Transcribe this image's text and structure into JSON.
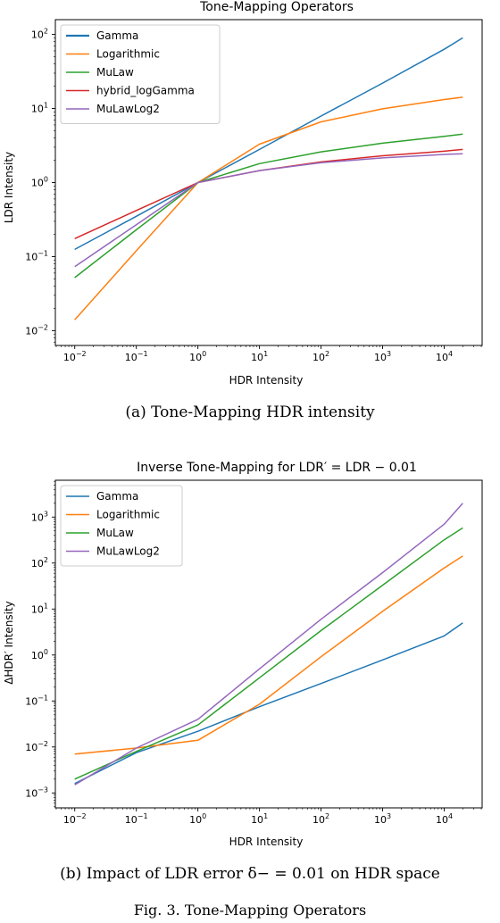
{
  "figure_caption": "Fig. 3. Tone-Mapping Operators",
  "subcaptions": [
    "(a) Tone-Mapping HDR intensity",
    "(b) Impact of LDR error δ− = 0.01 on HDR space"
  ],
  "colors": {
    "Gamma": "#1f77b4",
    "Logarithmic": "#ff7f0e",
    "MuLaw": "#2ca02c",
    "hybrid_logGamma": "#d62728",
    "MuLawLog2": "#9467bd"
  },
  "chart_data": [
    {
      "type": "line",
      "title": "Tone-Mapping Operators",
      "xlabel": "HDR Intensity",
      "ylabel": "LDR Intensity",
      "xscale": "log",
      "yscale": "log",
      "xlim": [
        0.01,
        20000
      ],
      "ylim": [
        0.01,
        100
      ],
      "legend": "top-left",
      "x": [
        0.01,
        0.1,
        1,
        10,
        100,
        1000,
        10000,
        20000
      ],
      "series": [
        {
          "name": "Gamma",
          "values": [
            0.125,
            0.35,
            1.0,
            2.8,
            7.9,
            22,
            63,
            90
          ]
        },
        {
          "name": "Logarithmic",
          "values": [
            0.014,
            0.12,
            1.0,
            3.3,
            6.6,
            9.9,
            13.2,
            14.2
          ]
        },
        {
          "name": "MuLaw",
          "values": [
            0.052,
            0.23,
            1.0,
            1.8,
            2.6,
            3.4,
            4.2,
            4.5
          ]
        },
        {
          "name": "hybrid_logGamma",
          "values": [
            0.175,
            0.42,
            1.0,
            1.45,
            1.9,
            2.3,
            2.65,
            2.8
          ]
        },
        {
          "name": "MuLawLog2",
          "values": [
            0.073,
            0.27,
            1.0,
            1.45,
            1.85,
            2.15,
            2.4,
            2.45
          ]
        }
      ]
    },
    {
      "type": "line",
      "title": "Inverse Tone-Mapping for LDR′ = LDR − 0.01",
      "xlabel": "HDR Intensity",
      "ylabel": "ΔHDR′ Intensity",
      "xscale": "log",
      "yscale": "log",
      "xlim": [
        0.01,
        20000
      ],
      "ylim": [
        0.001,
        3000
      ],
      "legend": "top-left",
      "x": [
        0.01,
        0.1,
        1,
        10,
        100,
        1000,
        10000,
        20000
      ],
      "series": [
        {
          "name": "Gamma",
          "values": [
            0.0016,
            0.0075,
            0.022,
            0.075,
            0.24,
            0.78,
            2.6,
            5.0
          ]
        },
        {
          "name": "Logarithmic",
          "values": [
            0.007,
            0.0095,
            0.014,
            0.085,
            0.92,
            8.9,
            78,
            142
          ]
        },
        {
          "name": "MuLaw",
          "values": [
            0.002,
            0.008,
            0.03,
            0.32,
            3.4,
            33,
            320,
            580
          ]
        },
        {
          "name": "MuLawLog2",
          "values": [
            0.0015,
            0.0095,
            0.04,
            0.5,
            6.0,
            62,
            700,
            2000
          ]
        }
      ]
    }
  ]
}
